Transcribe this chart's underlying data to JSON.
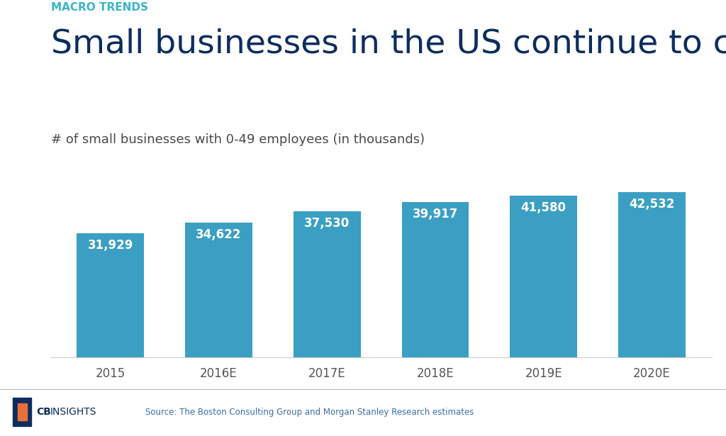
{
  "categories": [
    "2015",
    "2016E",
    "2017E",
    "2018E",
    "2019E",
    "2020E"
  ],
  "values": [
    31929,
    34622,
    37530,
    39917,
    41580,
    42532
  ],
  "bar_color": "#3a9fc3",
  "label_color": "#ffffff",
  "background_color": "#ffffff",
  "macro_trends_text": "MACRO TRENDS",
  "macro_trends_color": "#3ab5c8",
  "title": "Small businesses in the US continue to climb",
  "title_color": "#0d2d5e",
  "subtitle": "# of small businesses with 0-49 employees (in thousands)",
  "subtitle_color": "#4a4a4a",
  "source_text": "Source: The Boston Consulting Group and Morgan Stanley Research estimates",
  "source_color": "#3a6ea8",
  "cb_color_dark": "#0d2d5e",
  "cb_orange": "#e8703a",
  "footer_bg": "#eeeeee",
  "ylim_max": 47000,
  "bar_label_fontsize": 12,
  "title_fontsize": 34,
  "macro_fontsize": 11,
  "subtitle_fontsize": 13,
  "xtick_fontsize": 12
}
